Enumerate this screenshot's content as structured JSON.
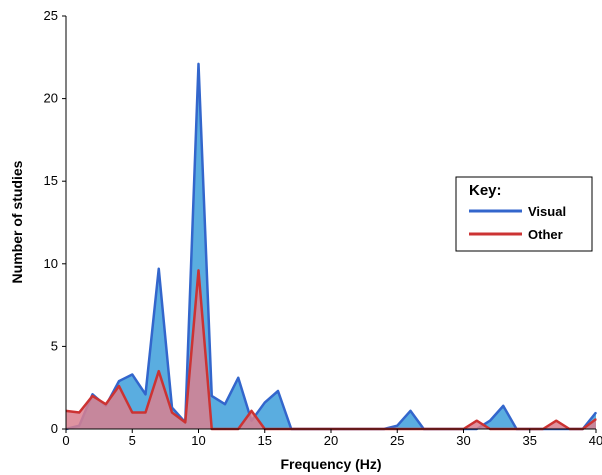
{
  "chart_data": {
    "type": "area",
    "title": "",
    "xlabel": "Frequency (Hz)",
    "ylabel": "Number of studies",
    "xlim": [
      0,
      40
    ],
    "ylim": [
      0,
      25
    ],
    "x_ticks": [
      "0",
      "5",
      "10",
      "15",
      "20",
      "25",
      "30",
      "35",
      "40"
    ],
    "y_ticks": [
      "0",
      "5",
      "10",
      "15",
      "20",
      "25"
    ],
    "grid": false,
    "legend": {
      "title": "Key:",
      "position": "right",
      "entries": [
        "Visual",
        "Other"
      ]
    },
    "colors": {
      "Visual": {
        "line": "#3366cc",
        "fill": "#5aade0"
      },
      "Other": {
        "line": "#cc3333",
        "fill": "#d9808f"
      }
    },
    "x": [
      0,
      1,
      2,
      3,
      4,
      5,
      6,
      7,
      8,
      9,
      10,
      11,
      12,
      13,
      14,
      15,
      16,
      17,
      18,
      19,
      20,
      21,
      22,
      23,
      24,
      25,
      26,
      27,
      28,
      29,
      30,
      31,
      32,
      33,
      34,
      35,
      36,
      37,
      38,
      39,
      40
    ],
    "series": [
      {
        "name": "Visual",
        "values": [
          0,
          0.2,
          2.1,
          1.4,
          2.9,
          3.3,
          2.1,
          9.7,
          1.3,
          0.4,
          22.1,
          2.0,
          1.5,
          3.1,
          0.5,
          1.6,
          2.3,
          0,
          0,
          0,
          0,
          0,
          0,
          0,
          0,
          0.2,
          1.1,
          0,
          0,
          0,
          0,
          0,
          0.5,
          1.4,
          0,
          0,
          0,
          0,
          0,
          0,
          1.0
        ]
      },
      {
        "name": "Other",
        "values": [
          1.1,
          1.0,
          2.0,
          1.5,
          2.6,
          1.0,
          1.0,
          3.5,
          1.0,
          0.4,
          9.6,
          0,
          0,
          0,
          1.1,
          0,
          0,
          0,
          0,
          0,
          0,
          0,
          0,
          0,
          0,
          0,
          0,
          0,
          0,
          0,
          0,
          0.5,
          0,
          0,
          0,
          0,
          0,
          0.5,
          0,
          0,
          0.6
        ]
      }
    ]
  }
}
